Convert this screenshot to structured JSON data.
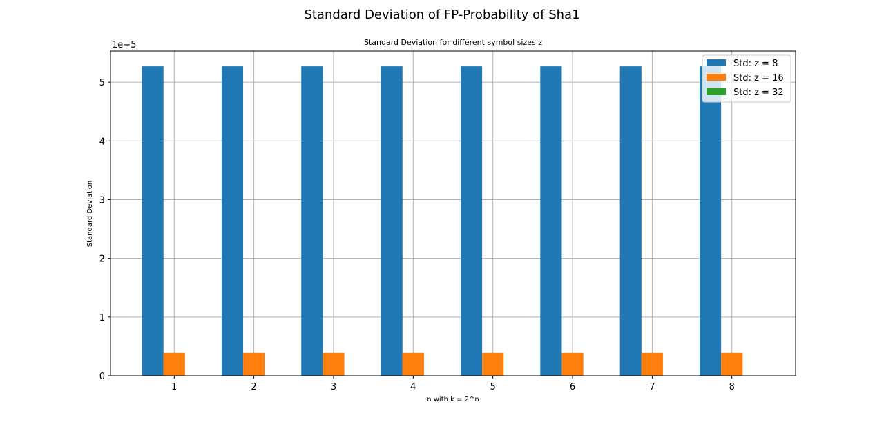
{
  "figure": {
    "title": "Standard Deviation of FP-Probability of Sha1"
  },
  "chart_data": {
    "type": "bar",
    "title": "Standard Deviation for different symbol sizes z",
    "xlabel": "n with k = 2^n",
    "ylabel": "Standard Deviation",
    "y_offset_text": "1e−5",
    "categories": [
      "1",
      "2",
      "3",
      "4",
      "5",
      "6",
      "7",
      "8"
    ],
    "series": [
      {
        "name": "Std: z = 8",
        "color": "#1f77b4",
        "values": [
          5.27e-05,
          5.27e-05,
          5.27e-05,
          5.27e-05,
          5.27e-05,
          5.27e-05,
          5.27e-05,
          5.27e-05
        ]
      },
      {
        "name": "Std: z = 16",
        "color": "#ff7f0e",
        "values": [
          3.9e-06,
          3.9e-06,
          3.9e-06,
          3.9e-06,
          3.9e-06,
          3.9e-06,
          3.9e-06,
          3.9e-06
        ]
      },
      {
        "name": "Std: z = 32",
        "color": "#2ca02c",
        "values": [
          0,
          0,
          0,
          0,
          0,
          0,
          0,
          0
        ]
      }
    ],
    "yticks": [
      "0",
      "1",
      "2",
      "3",
      "4",
      "5"
    ],
    "ytick_values": [
      0,
      1e-05,
      2e-05,
      3e-05,
      4e-05,
      5e-05
    ],
    "ylim": [
      0,
      5.53e-05
    ],
    "xlim": [
      0.2,
      8.8
    ],
    "grid": true,
    "legend": "top-right"
  }
}
